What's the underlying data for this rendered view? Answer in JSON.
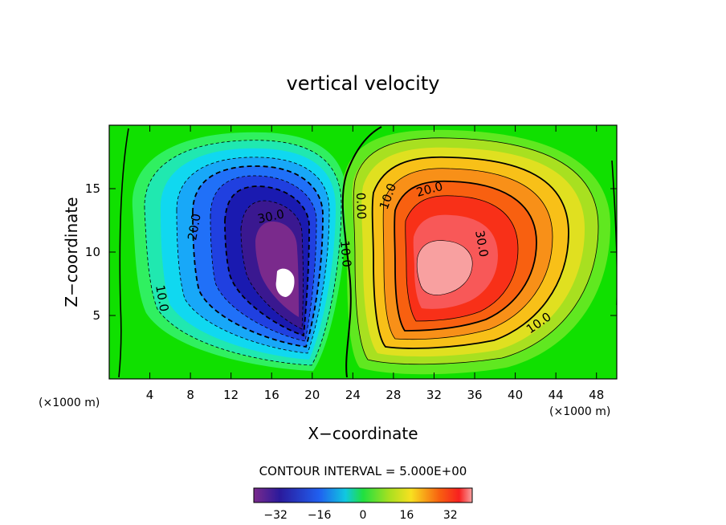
{
  "chart_data": {
    "type": "heatmap",
    "title": "vertical velocity",
    "xlabel": "X−coordinate",
    "ylabel": "Z−coordinate",
    "x_unit_note_left": "(×1000 m)",
    "x_unit_note_right": "(×1000 m)",
    "xlim": [
      0,
      50
    ],
    "ylim": [
      0,
      20
    ],
    "x_ticks": [
      "4",
      "8",
      "12",
      "16",
      "20",
      "24",
      "28",
      "32",
      "36",
      "40",
      "44",
      "48"
    ],
    "y_ticks": [
      "5",
      "10",
      "15"
    ],
    "contour_interval_label": "CONTOUR INTERVAL = 5.000E+00",
    "contour_labels": [
      "10.0",
      "20.0",
      "30.0",
      "10.0",
      "0.00",
      "10.0",
      "20.0",
      "30.0",
      "10.0",
      "10.0"
    ],
    "colorbar": {
      "range": [
        -40,
        40
      ],
      "ticks": [
        "−32",
        "−16",
        "0",
        "16",
        "32"
      ]
    },
    "field": {
      "downdraft": {
        "x": 17,
        "z": 8,
        "min": -40
      },
      "updraft": {
        "x": 32,
        "z": 8.5,
        "max": 36
      }
    }
  }
}
